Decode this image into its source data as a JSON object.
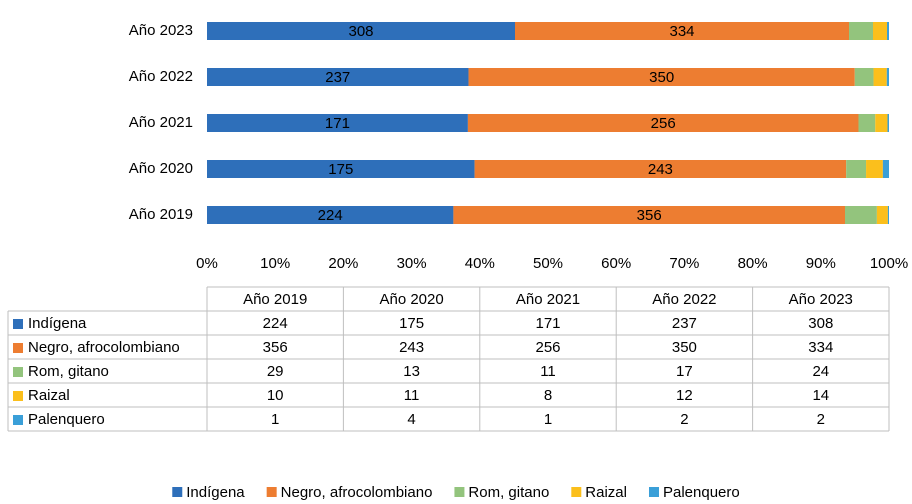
{
  "chart_data": {
    "type": "stacked_bar_100",
    "orientation": "horizontal",
    "categories": [
      "Año 2019",
      "Año 2020",
      "Año 2021",
      "Año 2022",
      "Año 2023"
    ],
    "series": [
      {
        "name": "Indígena",
        "color": "#2e6fba",
        "values": [
          224,
          175,
          171,
          237,
          308
        ],
        "data_labels": true
      },
      {
        "name": "Negro, afrocolombiano",
        "color": "#ed7d31",
        "values": [
          356,
          243,
          256,
          350,
          334
        ],
        "data_labels": true
      },
      {
        "name": "Rom, gitano",
        "color": "#93c47d",
        "values": [
          29,
          13,
          11,
          17,
          24
        ],
        "data_labels": false
      },
      {
        "name": "Raizal",
        "color": "#fbbf1c",
        "values": [
          10,
          11,
          8,
          12,
          14
        ],
        "data_labels": false
      },
      {
        "name": "Palenquero",
        "color": "#3a9fd8",
        "values": [
          1,
          4,
          1,
          2,
          2
        ],
        "data_labels": false
      }
    ],
    "xlim": [
      0,
      100
    ],
    "xticks": [
      {
        "value": 0,
        "label": "0%"
      },
      {
        "value": 10,
        "label": "10%"
      },
      {
        "value": 20,
        "label": "20%"
      },
      {
        "value": 30,
        "label": "30%"
      },
      {
        "value": 40,
        "label": "40%"
      },
      {
        "value": 50,
        "label": "50%"
      },
      {
        "value": 60,
        "label": "60%"
      },
      {
        "value": 70,
        "label": "70%"
      },
      {
        "value": 80,
        "label": "80%"
      },
      {
        "value": 90,
        "label": "90%"
      },
      {
        "value": 100,
        "label": "100%"
      }
    ],
    "grid": false,
    "data_table": true,
    "legend": "bottom"
  }
}
